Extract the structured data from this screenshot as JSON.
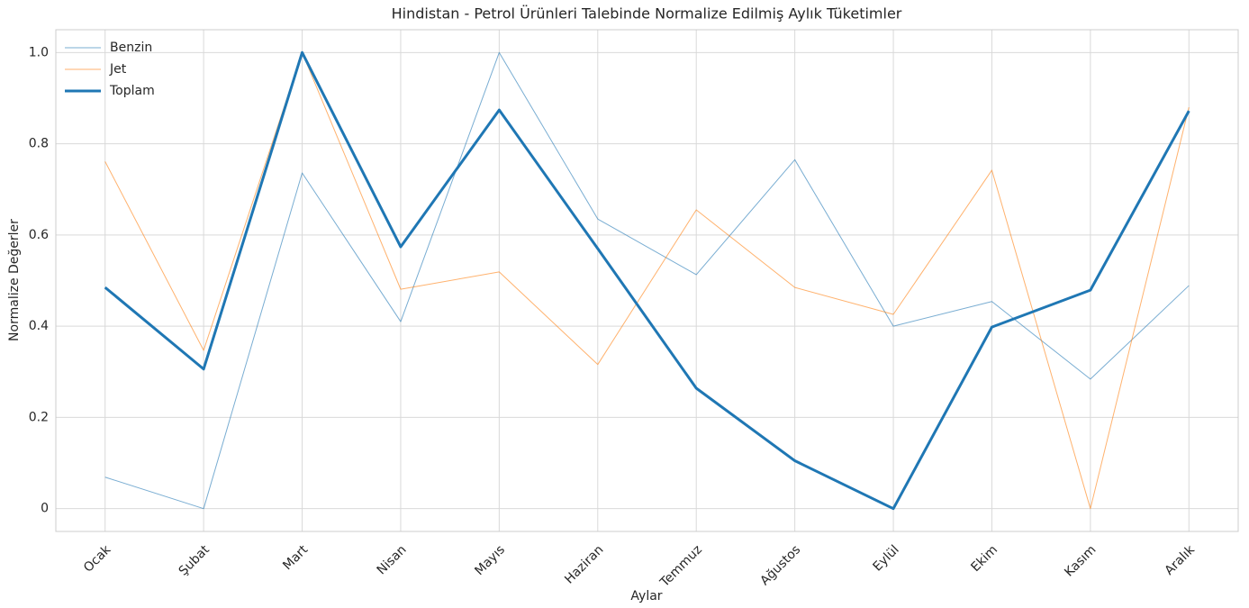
{
  "chart_data": {
    "type": "line",
    "title": "Hindistan - Petrol Ürünleri Talebinde Normalize Edilmiş Aylık Tüketimler",
    "xlabel": "Aylar",
    "ylabel": "Normalize Değerler",
    "categories": [
      "Ocak",
      "Şubat",
      "Mart",
      "Nisan",
      "Mayıs",
      "Haziran",
      "Temmuz",
      "Ağustos",
      "Eylül",
      "Ekim",
      "Kasım",
      "Aralık"
    ],
    "series": [
      {
        "name": "Benzin",
        "color": "#1f77b4",
        "linewidth": 1,
        "opacity": 0.6,
        "values": [
          0.069,
          0.0,
          0.736,
          0.41,
          1.0,
          0.635,
          0.513,
          0.765,
          0.4,
          0.454,
          0.284,
          0.489
        ]
      },
      {
        "name": "Jet",
        "color": "#ff7f0e",
        "linewidth": 1,
        "opacity": 0.6,
        "values": [
          0.761,
          0.347,
          1.0,
          0.481,
          0.519,
          0.316,
          0.655,
          0.485,
          0.426,
          0.742,
          0.0,
          0.88
        ]
      },
      {
        "name": "Toplam",
        "color": "#1f77b4",
        "linewidth": 3,
        "opacity": 1,
        "values": [
          0.485,
          0.306,
          1.0,
          0.574,
          0.874,
          0.57,
          0.264,
          0.105,
          0.0,
          0.398,
          0.479,
          0.872
        ]
      }
    ],
    "ylim": [
      -0.05,
      1.05
    ],
    "yticks": [
      0.0,
      {
        "value": 0.2,
        "label": "0.2"
      },
      {
        "value": 0.4,
        "label": "0.4"
      },
      {
        "value": 0.6,
        "label": "0.6"
      },
      {
        "value": 0.8,
        "label": "0.8"
      },
      {
        "value": 1.0,
        "label": "1.0"
      }
    ],
    "grid": true,
    "legend": "upper-left"
  }
}
